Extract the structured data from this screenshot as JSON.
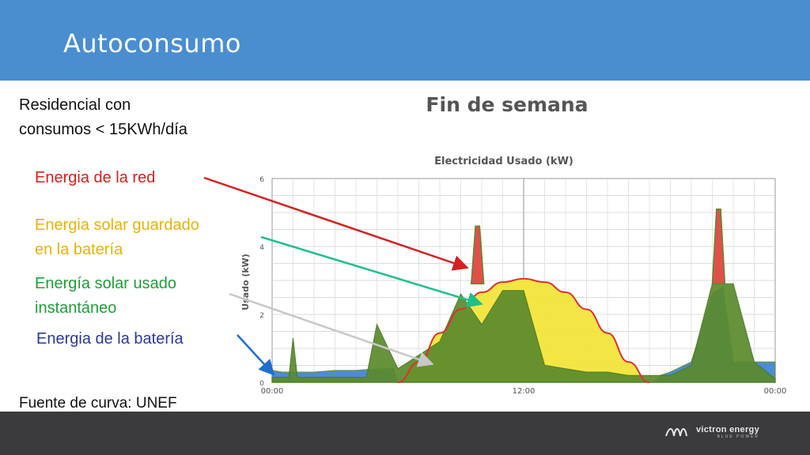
{
  "slide": {
    "title": "Autoconsumo",
    "subtitle_lines": [
      "Residencial con",
      "consumos < 15KWh/día"
    ],
    "labels": {
      "grid": "Energia de la red",
      "solar_stored": [
        "Energia solar guardado",
        "en la batería"
      ],
      "solar_instant": [
        "Energía solar usado",
        "instantáneo"
      ],
      "battery": "Energia de la batería"
    },
    "source": "Fuente de curva: UNEF",
    "logo": "victron energy",
    "logo_sub": "BLUE POWER"
  },
  "colors": {
    "header": "#4a8ed0",
    "footer": "#3b3b3d",
    "grid_energy": "#e0504a",
    "solar_stored": "#f2e53a",
    "solar_instant": "#5b8a2c",
    "battery": "#3a7fd0",
    "solar_curve": "#e03030"
  },
  "chart_data": {
    "type": "area",
    "title": "Fin de semana",
    "subtitle": "Electricidad Usado (kW)",
    "ylabel": "Usado (kW)",
    "xlabel": "",
    "x_ticks": [
      "00:00",
      "12:00",
      "00:00"
    ],
    "y_ticks": [
      0,
      2,
      4,
      6
    ],
    "xlim": [
      0,
      24
    ],
    "ylim": [
      0,
      6
    ],
    "grid": true,
    "solar_curve": {
      "x": [
        6,
        7,
        8,
        9,
        10,
        11,
        12,
        13,
        14,
        15,
        16,
        17,
        18
      ],
      "values": [
        0,
        0.6,
        1.45,
        2.15,
        2.65,
        2.95,
        3.05,
        2.95,
        2.65,
        2.15,
        1.45,
        0.6,
        0
      ]
    },
    "series": [
      {
        "name": "Energia de la batería",
        "x": [
          0,
          0.5,
          1,
          1.5,
          2,
          3,
          4,
          5,
          5.8,
          6,
          18.2,
          18.5,
          19,
          20,
          21,
          21.5,
          22,
          23,
          24
        ],
        "values": [
          0.35,
          0.3,
          0.3,
          0.3,
          0.3,
          0.35,
          0.35,
          0.4,
          0.4,
          0.0,
          0.0,
          0.2,
          0.3,
          0.6,
          2.6,
          2.8,
          0.6,
          0.6,
          0.6
        ]
      },
      {
        "name": "Energía solar usado instantáneo",
        "x": [
          0,
          0.8,
          1,
          1.2,
          3,
          3.5,
          4.5,
          5,
          6,
          8,
          9,
          10,
          11,
          12,
          13,
          14,
          15,
          16,
          17,
          18,
          19,
          20,
          21,
          22,
          23,
          24
        ],
        "values": [
          0.15,
          0.15,
          1.3,
          0.15,
          0.15,
          0.15,
          0.15,
          1.7,
          0.4,
          1.2,
          2.6,
          1.7,
          2.7,
          2.7,
          0.5,
          0.4,
          0.3,
          0.3,
          0.2,
          0.2,
          0.2,
          0.5,
          2.9,
          2.9,
          0.6,
          0.1
        ]
      },
      {
        "name": "Energia de la red",
        "x": [
          9.5,
          9.7,
          9.9,
          10.1,
          21.0,
          21.2,
          21.4,
          21.6
        ],
        "values": [
          2.9,
          4.6,
          4.6,
          2.9,
          2.9,
          5.1,
          5.1,
          2.9
        ]
      }
    ]
  }
}
